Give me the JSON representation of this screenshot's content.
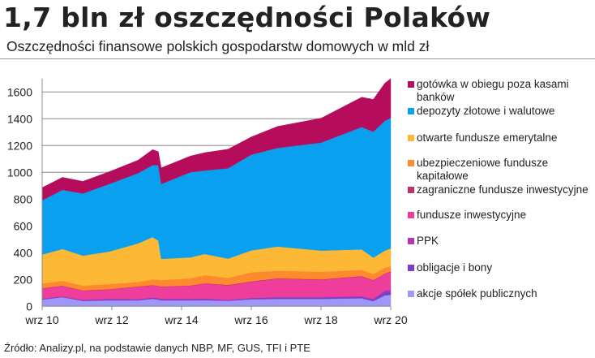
{
  "title": "1,7 bln zł oszczędności Polaków",
  "subtitle": "Oszczędności finansowe polskich gospodarstw domowych w mld zł",
  "source": "Źródło: Analizy.pl, na podstawie danych NBP, MF, GUS, TFI i PTE",
  "chart_data": {
    "type": "area",
    "stacked": true,
    "title": "",
    "xlabel": "",
    "ylabel": "",
    "ylim": [
      0,
      1700
    ],
    "yticks": [
      0,
      200,
      400,
      600,
      800,
      1000,
      1200,
      1400,
      1600
    ],
    "ytick_labels": [
      "0",
      "200",
      "400",
      "600",
      "800",
      "1000",
      "1200",
      "1400",
      "1600"
    ],
    "xticks": [
      "2010-09",
      "2012-09",
      "2014-09",
      "2016-09",
      "2018-09",
      "2020-09"
    ],
    "xtick_labels": [
      "wrz 10",
      "wrz 12",
      "wrz 14",
      "wrz 16",
      "wrz 18",
      "wrz 20"
    ],
    "grid": "horizontal",
    "legend_placement": "right",
    "x": [
      "2010-09",
      "2011-04",
      "2011-11",
      "2012-08",
      "2013-06",
      "2013-11",
      "2014-01",
      "2014-02",
      "2014-12",
      "2015-05",
      "2016-01",
      "2016-09",
      "2017-06",
      "2018-09",
      "2019-11",
      "2020-03",
      "2020-07",
      "2020-09"
    ],
    "series": [
      {
        "name": "akcje spółek publicznych",
        "color": "#9d98f7",
        "values": [
          50,
          68,
          40,
          44,
          44,
          55,
          50,
          44,
          44,
          45,
          41,
          52,
          55,
          55,
          60,
          38,
          82,
          85
        ]
      },
      {
        "name": "obligacje i bony",
        "color": "#7b3ec6",
        "values": [
          8,
          5,
          8,
          11,
          9,
          10,
          10,
          11,
          11,
          12,
          7,
          10,
          13,
          13,
          12,
          14,
          28,
          25
        ]
      },
      {
        "name": "PPK",
        "color": "#b634b8",
        "values": [
          0,
          0,
          0,
          0,
          0,
          0,
          0,
          0,
          0,
          0,
          0,
          0,
          0,
          0,
          3,
          4,
          8,
          14
        ]
      },
      {
        "name": "fundusze inwestycyjne",
        "color": "#ee3d9b",
        "values": [
          75,
          78,
          67,
          70,
          92,
          91,
          90,
          90,
          98,
          112,
          108,
          120,
          138,
          129,
          147,
          136,
          123,
          132
        ]
      },
      {
        "name": "zagraniczne fundusze inwestycyjne",
        "color": "#c0306a",
        "values": [
          3,
          3,
          3,
          3,
          3,
          3,
          3,
          3,
          3,
          3,
          4,
          4,
          4,
          4,
          4,
          4,
          4,
          5
        ]
      },
      {
        "name": "ubezpieczeniowe fundusze kapitałowe",
        "color": "#fd8b2e",
        "values": [
          35,
          36,
          37,
          38,
          34,
          43,
          45,
          48,
          53,
          61,
          52,
          68,
          56,
          57,
          46,
          46,
          43,
          39
        ]
      },
      {
        "name": "otwarte fundusze emerytalne",
        "color": "#fdb935",
        "values": [
          215,
          238,
          223,
          242,
          287,
          315,
          291,
          158,
          156,
          157,
          144,
          163,
          180,
          158,
          152,
          121,
          128,
          132
        ]
      },
      {
        "name": "depozyty złotowe i walutowe",
        "color": "#0aa0f0",
        "values": [
          405,
          441,
          464,
          505,
          525,
          537,
          565,
          559,
          636,
          624,
          674,
          715,
          736,
          806,
          914,
          940,
          969,
          975
        ]
      },
      {
        "name": "gotówka w obiegu poza kasami banków",
        "color": "#b50d5c",
        "values": [
          95,
          94,
          91,
          91,
          97,
          116,
          101,
          121,
          121,
          133,
          143,
          133,
          161,
          182,
          223,
          242,
          281,
          293
        ]
      }
    ]
  }
}
